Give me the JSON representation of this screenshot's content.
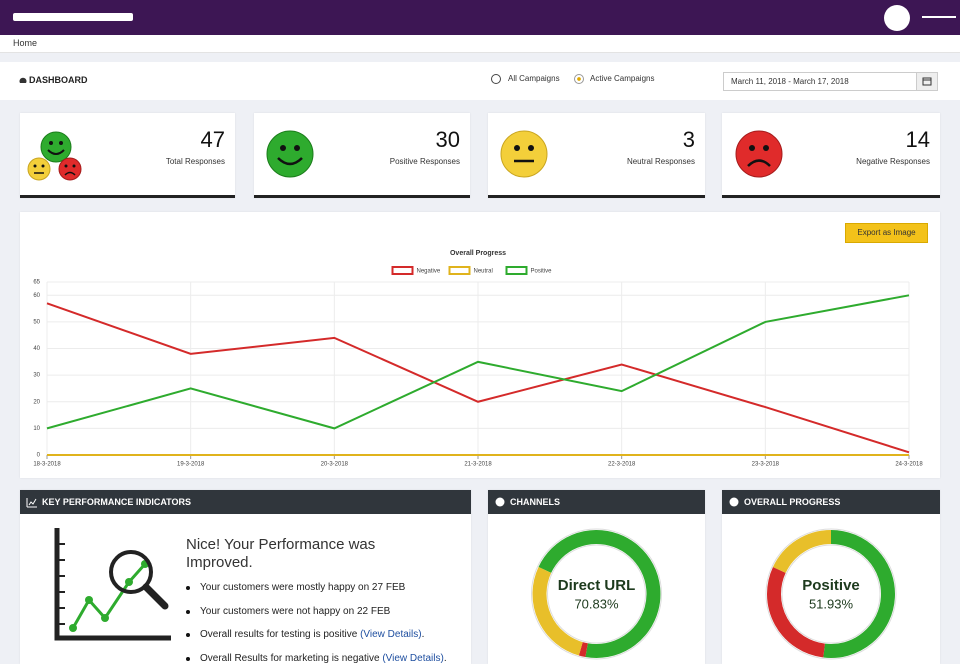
{
  "header": {
    "breadcrumb": "Home",
    "title": "DASHBOARD",
    "filters": [
      "All Campaigns",
      "Active Campaigns"
    ],
    "date_range": "March 11, 2018 - March 17, 2018"
  },
  "stats": [
    {
      "value": 47,
      "label": "Total Responses"
    },
    {
      "value": 30,
      "label": "Positive Responses"
    },
    {
      "value": 3,
      "label": "Neutral Responses"
    },
    {
      "value": 14,
      "label": "Negative Responses"
    }
  ],
  "export_button": "Export as Image",
  "chart_data": {
    "type": "line",
    "title": "Overall Progress",
    "categories": [
      "18-3-2018",
      "19-3-2018",
      "20-3-2018",
      "21-3-2018",
      "22-3-2018",
      "23-3-2018",
      "24-3-2018"
    ],
    "series": [
      {
        "name": "Negative",
        "color": "#d42a2a",
        "values": [
          57,
          38,
          44,
          20,
          34,
          18,
          1
        ]
      },
      {
        "name": "Neutral",
        "color": "#e0b31c",
        "values": [
          0,
          0,
          0,
          0,
          0,
          0,
          0
        ]
      },
      {
        "name": "Positive",
        "color": "#2eab2e",
        "values": [
          10,
          25,
          10,
          35,
          24,
          50,
          60
        ]
      }
    ],
    "ylim": [
      0,
      65
    ],
    "yticks": [
      0,
      10,
      20,
      30,
      40,
      50,
      60,
      65
    ],
    "grid": true,
    "legend_position": "top"
  },
  "kpi": {
    "title": "KEY PERFORMANCE INDICATORS",
    "heading": "Nice! Your Performance was Improved.",
    "items": [
      {
        "text": "Your customers were mostly happy on 27 FEB"
      },
      {
        "text": "Your customers were not happy on 22 FEB"
      },
      {
        "text": "Overall results for testing is positive",
        "link": "(View Details)",
        "end": "."
      },
      {
        "text": "Overall Results for marketing is negative",
        "link": "(View Details)",
        "end": "."
      }
    ]
  },
  "donuts": [
    {
      "type": "pie",
      "title": "CHANNELS",
      "center_label": "Direct URL",
      "center_value_label": "70.83%",
      "values": [
        70.83,
        1.67,
        27.5
      ],
      "colors": [
        "#2eab2e",
        "#d42a2a",
        "#e8bf2a"
      ]
    },
    {
      "type": "pie",
      "title": "OVERALL PROGRESS",
      "center_label": "Positive",
      "center_value_label": "51.93%",
      "values": [
        51.93,
        30,
        18.07
      ],
      "colors": [
        "#2eab2e",
        "#d42a2a",
        "#e8bf2a"
      ]
    }
  ]
}
